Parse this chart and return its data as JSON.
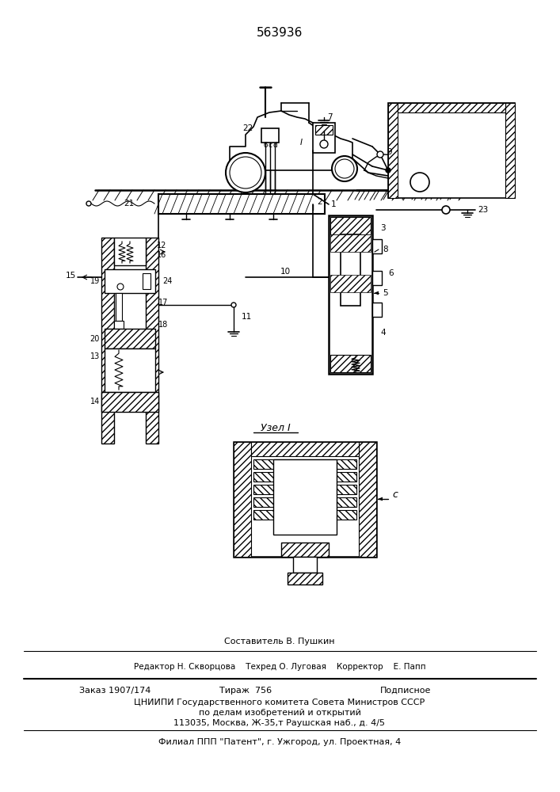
{
  "patent_number": "563936",
  "background_color": "#ffffff",
  "line_color": "#000000",
  "footer_lines": [
    "Составитель В. Пушкин",
    "Редактор Н. Скворцова    Техред О. Луговая    Корректор    Е. Папп",
    "Заказ 1907/174        Тираж  756          Подписное",
    "ЦНИИПИ Государственного комитета Совета Министров СССР",
    "по делам изобретений и открытий",
    "113035, Москва, Ж-35,т Раушская наб., д. 4/5",
    "Филиал ППП \"Патент\", г. Ужгород, ул. Проектная, 4"
  ]
}
